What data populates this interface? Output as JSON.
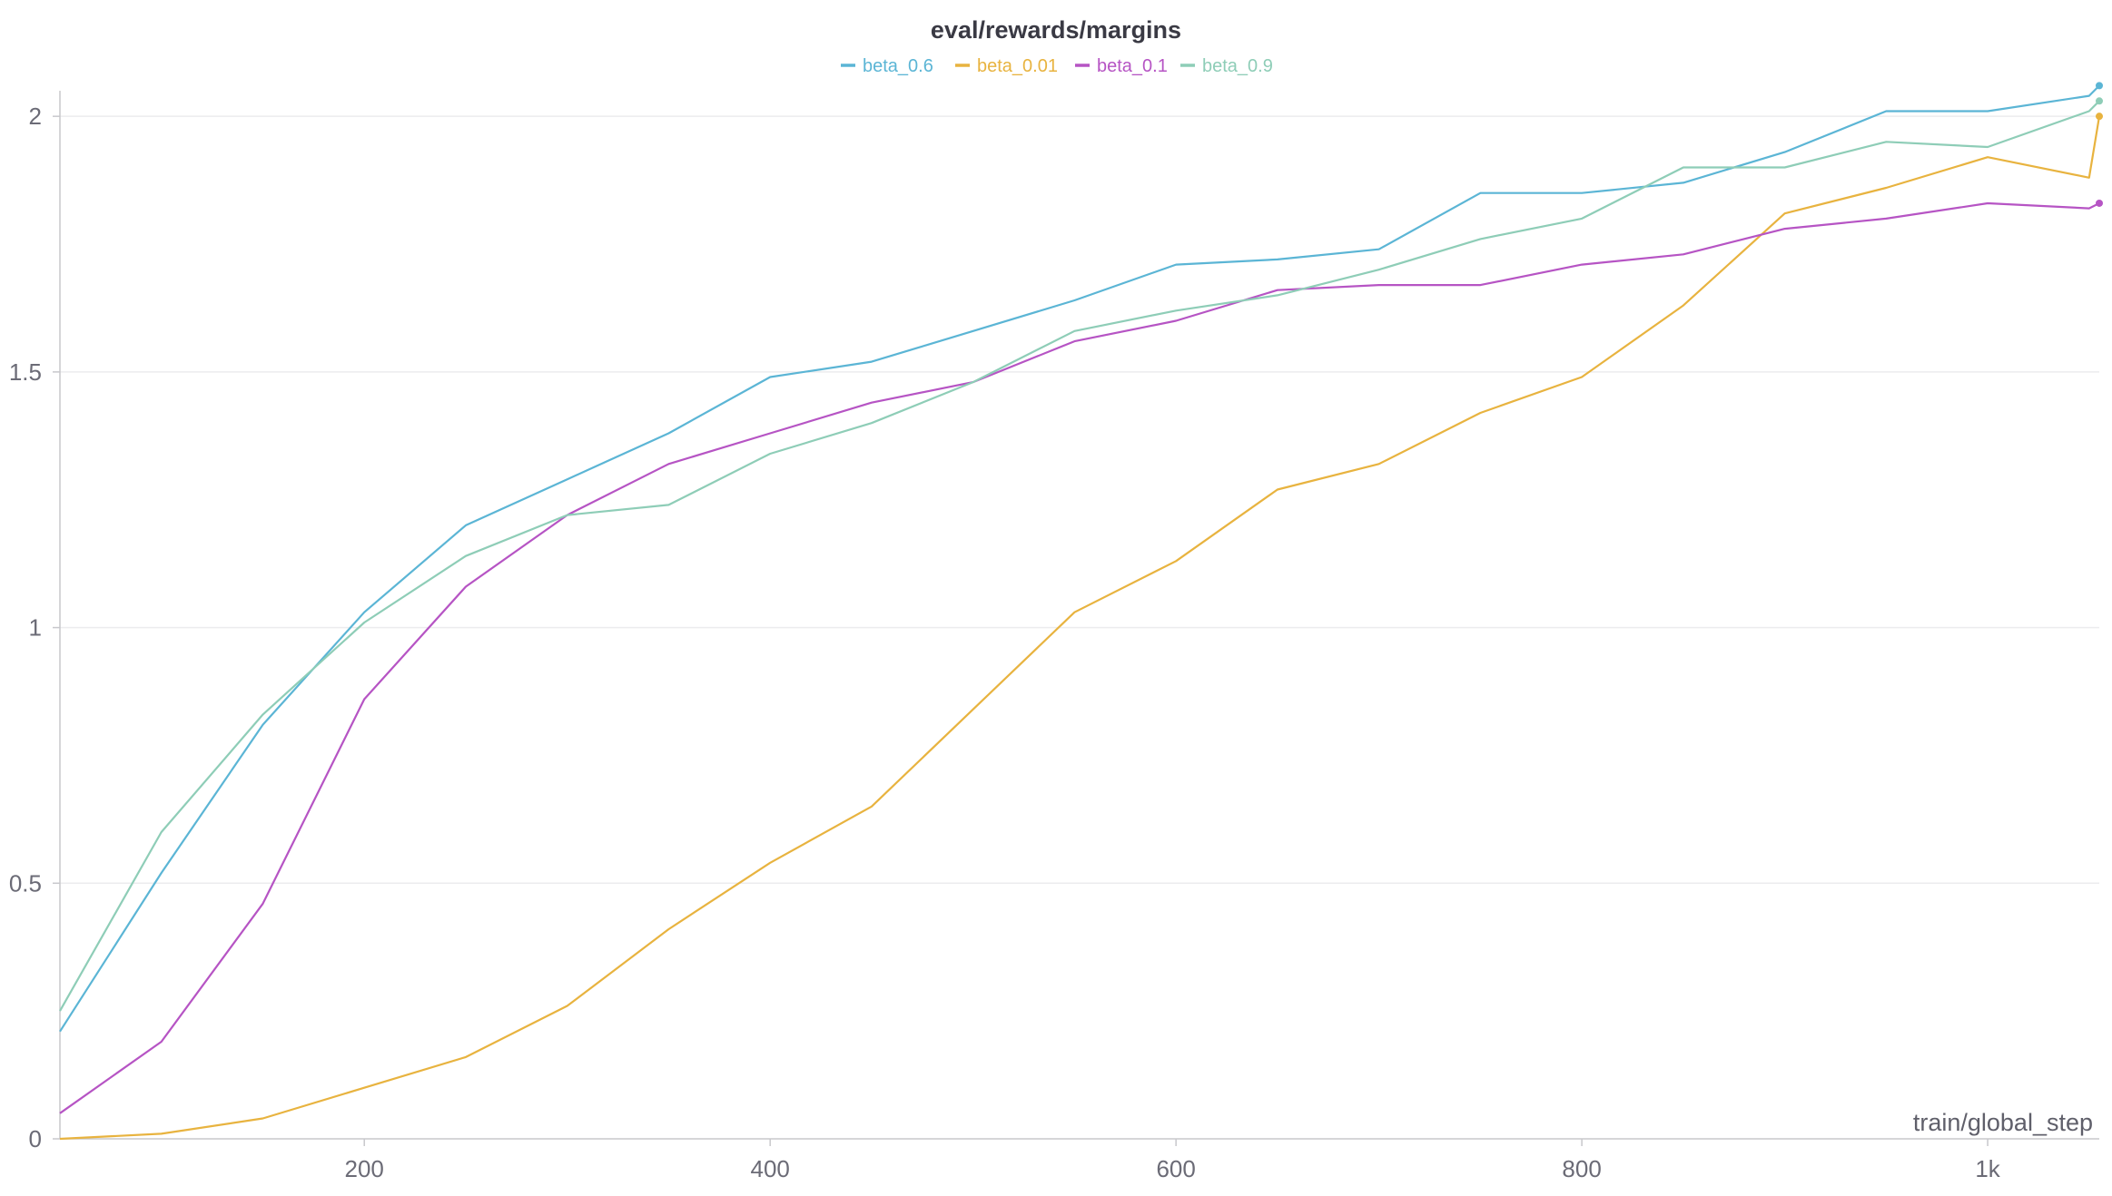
{
  "chart_data": {
    "type": "line",
    "title": "eval/rewards/margins",
    "xlabel": "train/global_step",
    "ylabel": "",
    "xlim": [
      50,
      1055
    ],
    "ylim": [
      0,
      2.05
    ],
    "grid": true,
    "legend_position": "top-center",
    "x_ticks": [
      {
        "value": 200,
        "label": "200"
      },
      {
        "value": 400,
        "label": "400"
      },
      {
        "value": 600,
        "label": "600"
      },
      {
        "value": 800,
        "label": "800"
      },
      {
        "value": 1000,
        "label": "1k"
      }
    ],
    "y_ticks": [
      {
        "value": 0,
        "label": "0"
      },
      {
        "value": 0.5,
        "label": "0.5"
      },
      {
        "value": 1,
        "label": "1"
      },
      {
        "value": 1.5,
        "label": "1.5"
      },
      {
        "value": 2,
        "label": "2"
      }
    ],
    "x": [
      50,
      100,
      150,
      200,
      250,
      300,
      350,
      400,
      450,
      500,
      550,
      600,
      650,
      700,
      750,
      800,
      850,
      900,
      950,
      1000,
      1050
    ],
    "series": [
      {
        "name": "beta_0.6",
        "color": "#5bb5d5",
        "values": [
          0.21,
          0.52,
          0.81,
          1.03,
          1.2,
          1.29,
          1.38,
          1.49,
          1.52,
          1.58,
          1.64,
          1.71,
          1.72,
          1.74,
          1.85,
          1.85,
          1.87,
          1.93,
          2.01,
          2.01,
          2.04
        ],
        "last_point": {
          "x": 1055,
          "y": 2.06
        }
      },
      {
        "name": "beta_0.01",
        "color": "#e8b33f",
        "values": [
          0.0,
          0.01,
          0.04,
          0.1,
          0.16,
          0.26,
          0.41,
          0.54,
          0.65,
          0.84,
          1.03,
          1.13,
          1.27,
          1.32,
          1.42,
          1.49,
          1.63,
          1.81,
          1.86,
          1.92,
          1.88
        ],
        "last_point": {
          "x": 1055,
          "y": 2.0
        }
      },
      {
        "name": "beta_0.1",
        "color": "#b654c4",
        "values": [
          0.05,
          0.19,
          0.46,
          0.86,
          1.08,
          1.22,
          1.32,
          1.38,
          1.44,
          1.48,
          1.56,
          1.6,
          1.66,
          1.67,
          1.67,
          1.71,
          1.73,
          1.78,
          1.8,
          1.83,
          1.82
        ],
        "last_point": {
          "x": 1055,
          "y": 1.83
        }
      },
      {
        "name": "beta_0.9",
        "color": "#8ecdb7",
        "values": [
          0.25,
          0.6,
          0.83,
          1.01,
          1.14,
          1.22,
          1.24,
          1.34,
          1.4,
          1.48,
          1.58,
          1.62,
          1.65,
          1.7,
          1.76,
          1.8,
          1.9,
          1.9,
          1.95,
          1.94,
          2.01
        ],
        "last_point": {
          "x": 1055,
          "y": 2.03
        }
      }
    ]
  }
}
